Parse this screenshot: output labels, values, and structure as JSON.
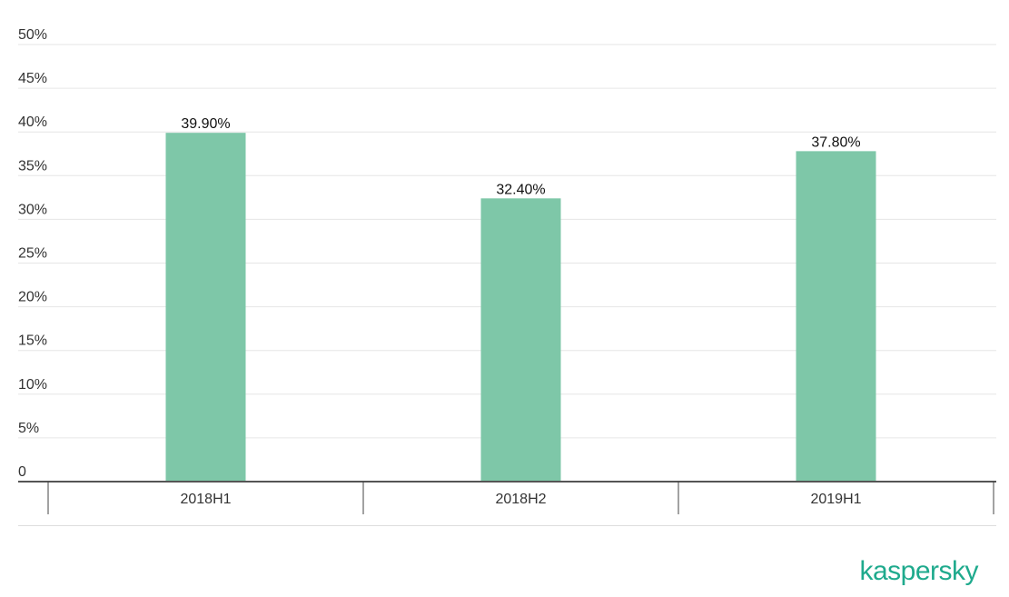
{
  "chart_data": {
    "type": "bar",
    "categories": [
      "2018H1",
      "2018H2",
      "2019H1"
    ],
    "values": [
      39.9,
      32.4,
      37.8
    ],
    "data_labels": [
      "39.90%",
      "32.40%",
      "37.80%"
    ],
    "yticks": [
      "0",
      "5%",
      "10%",
      "15%",
      "20%",
      "25%",
      "30%",
      "35%",
      "40%",
      "45%",
      "50%"
    ],
    "ylim": [
      0,
      50
    ],
    "grid": true,
    "bar_color": "#7ec7a8",
    "gridline_color": "#e6e6e6",
    "axis_color": "#555555"
  },
  "branding": {
    "logo_text": "kaspersky",
    "logo_color": "#1faa8d"
  }
}
